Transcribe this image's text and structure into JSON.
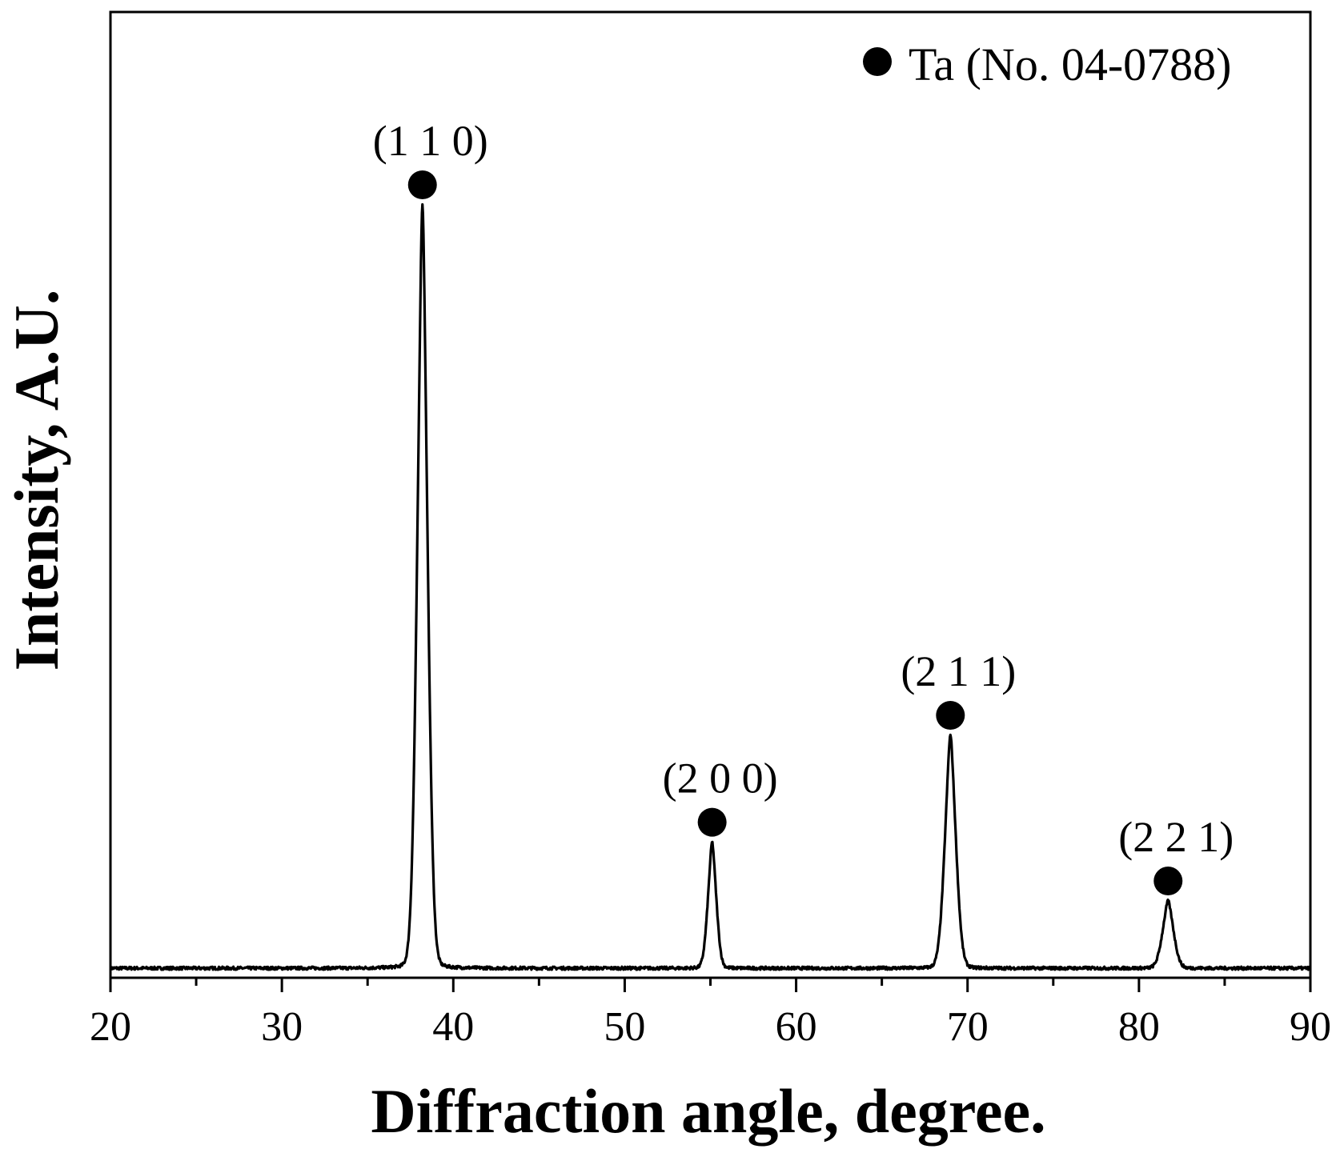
{
  "chart_data": {
    "type": "line",
    "xlabel": "Diffraction angle, degree.",
    "ylabel": "Intensity, A.U.",
    "xlim": [
      20,
      90
    ],
    "ylim": [
      0,
      1.15
    ],
    "x_ticks": [
      20,
      30,
      40,
      50,
      60,
      70,
      80,
      90
    ],
    "x_minor_step": 5,
    "y_ticks_shown": false,
    "grid": false,
    "legend": {
      "position": "top-right",
      "marker": "filled-circle",
      "label": "Ta (No. 04-0788)"
    },
    "series": [
      {
        "color": "#000000",
        "peaks": [
          {
            "x": 38.2,
            "y": 1.0,
            "width": 0.32
          },
          {
            "x": 55.1,
            "y": 0.165,
            "width": 0.26
          },
          {
            "x": 69.0,
            "y": 0.305,
            "width": 0.34
          },
          {
            "x": 81.7,
            "y": 0.088,
            "width": 0.34
          }
        ],
        "baseline": 0.002
      }
    ],
    "annotations": [
      {
        "text": "(1 1 0)",
        "x": 38.2,
        "y": 1.0
      },
      {
        "text": "(2 0 0)",
        "x": 55.1,
        "y": 0.165
      },
      {
        "text": "(2 1 1)",
        "x": 69.0,
        "y": 0.305
      },
      {
        "text": "(2 2 1)",
        "x": 81.7,
        "y": 0.088
      }
    ]
  }
}
